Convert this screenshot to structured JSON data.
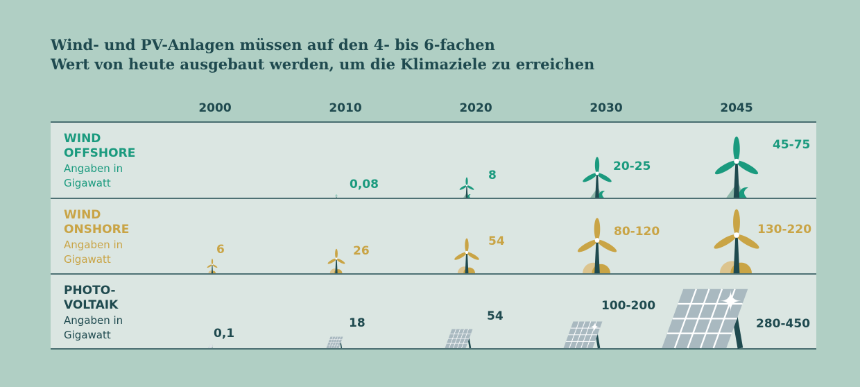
{
  "title": "Wind- und PV-Anlagen müssen auf den 4- bis 6-fachen Wert von heute ausgebaut werden, um die Klimaziele zu erreichen",
  "years": [
    "2000",
    "2010",
    "2020",
    "2030",
    "2045"
  ],
  "rows": [
    {
      "label": "WIND OFFSHORE",
      "unit": "Angaben in Gigawatt",
      "values": [
        null,
        "0,08",
        "8",
        "20-25",
        "45-75"
      ]
    },
    {
      "label": "WIND ONSHORE",
      "unit": "Angaben in Gigawatt",
      "values": [
        "6",
        "26",
        "54",
        "80-120",
        "130-220"
      ]
    },
    {
      "label": "PHOTO-VOLTAIK",
      "unit": "Angaben in Gigawatt",
      "values": [
        "0,1",
        "18",
        "54",
        "100-200",
        "280-450"
      ]
    }
  ]
}
